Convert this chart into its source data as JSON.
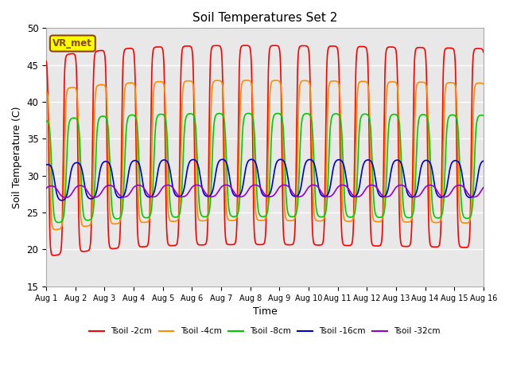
{
  "title": "Soil Temperatures Set 2",
  "xlabel": "Time",
  "ylabel": "Soil Temperature (C)",
  "ylim": [
    15,
    50
  ],
  "xlim_days": 15,
  "x_tick_labels": [
    "Aug 1",
    "Aug 2",
    "Aug 3",
    "Aug 4",
    "Aug 5",
    "Aug 6",
    "Aug 7",
    "Aug 8",
    "Aug 9",
    "Aug 10",
    "Aug 11",
    "Aug 12",
    "Aug 13",
    "Aug 14",
    "Aug 15",
    "Aug 16"
  ],
  "background_color": "#ffffff",
  "plot_bg_color": "#e8e8e8",
  "grid_color": "#ffffff",
  "annotation_text": "VR_met",
  "annotation_bg": "#ffff00",
  "annotation_border": "#8b4513",
  "series": [
    {
      "label": "Tsoil -2cm",
      "color": "#ff0000",
      "lw": 1.2
    },
    {
      "label": "Tsoil -4cm",
      "color": "#ff8c00",
      "lw": 1.2
    },
    {
      "label": "Tsoil -8cm",
      "color": "#00cc00",
      "lw": 1.2
    },
    {
      "label": "Tsoil -16cm",
      "color": "#0000cc",
      "lw": 1.2
    },
    {
      "label": "Tsoil -32cm",
      "color": "#9900cc",
      "lw": 1.2
    }
  ]
}
